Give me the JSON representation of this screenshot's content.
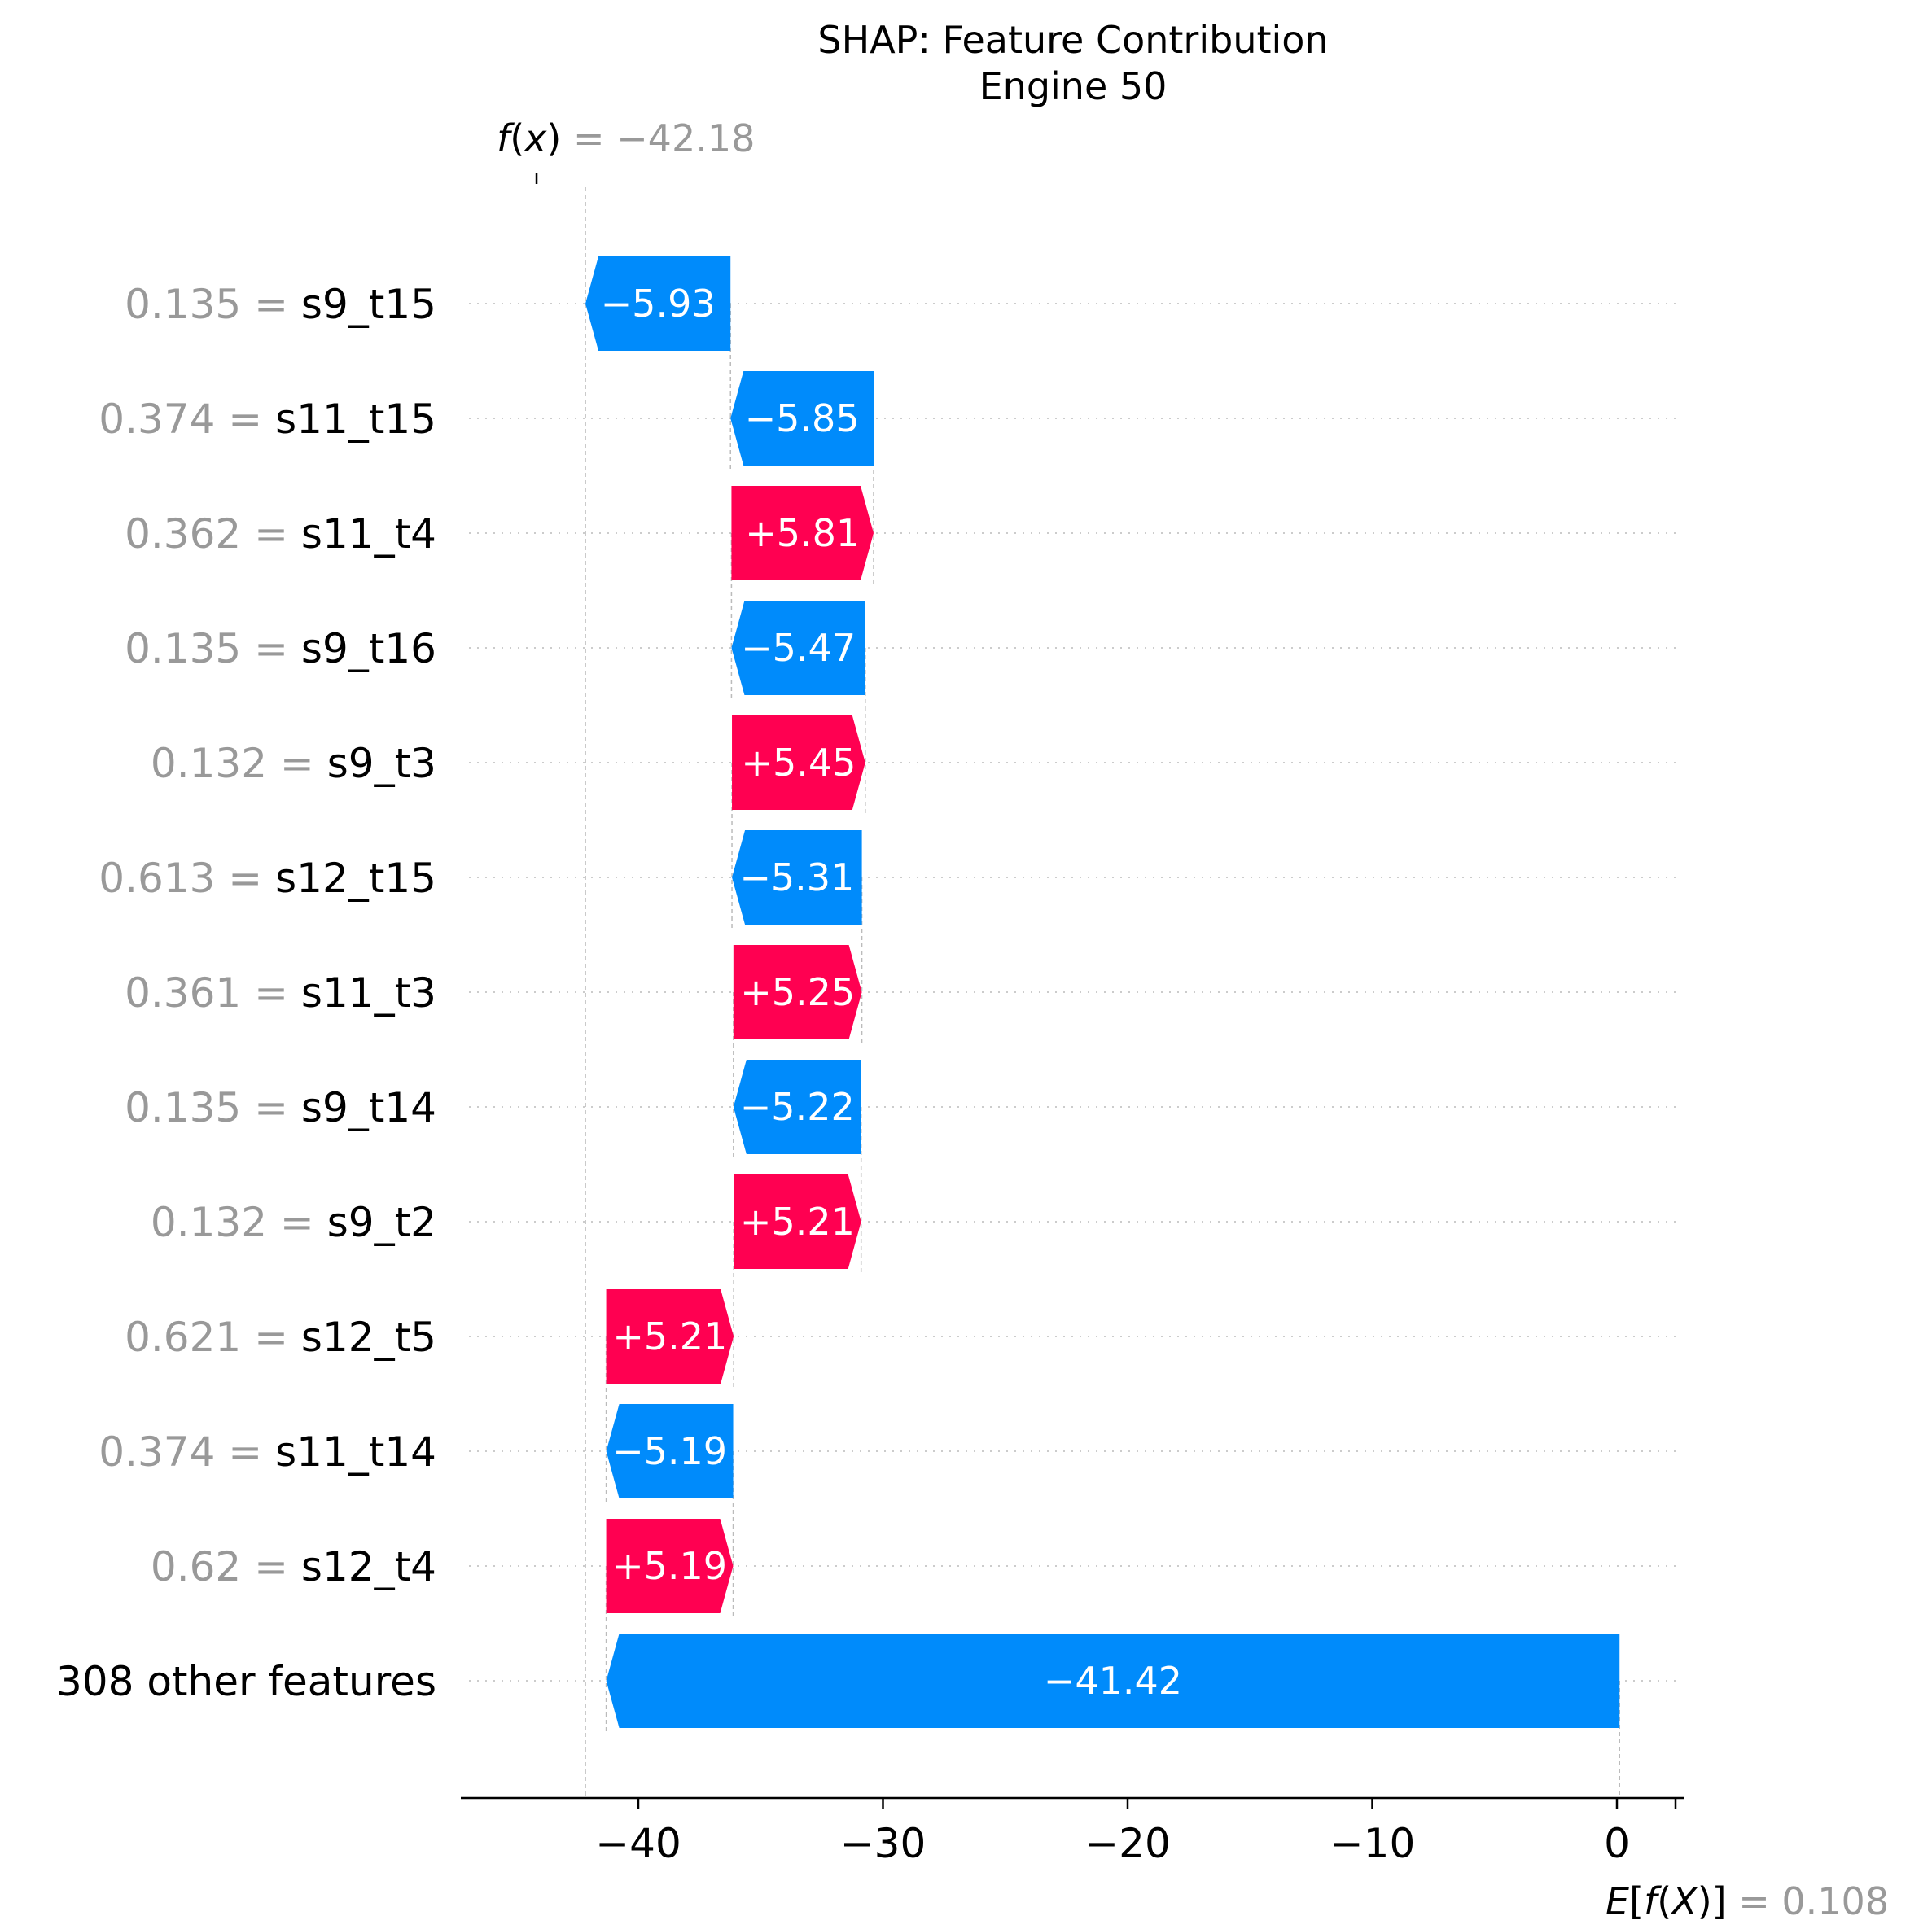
{
  "chart_data": {
    "type": "waterfall",
    "title": "SHAP: Feature Contribution",
    "subtitle": "Engine 50",
    "fx_value": "−42.18",
    "base_value": "0.108",
    "base_value_num": 0.108,
    "xlim": [
      -47,
      2.7
    ],
    "xticks": [
      -40,
      -30,
      -20,
      -10,
      0
    ],
    "tick_labels": [
      "−40",
      "−30",
      "−20",
      "−10",
      "0"
    ],
    "colors": {
      "positive": "#ff0051",
      "negative": "#008bfb"
    },
    "features": [
      {
        "value": "0.135",
        "name": "s9_t15",
        "shap": -5.93,
        "label": "−5.93"
      },
      {
        "value": "0.374",
        "name": "s11_t15",
        "shap": -5.85,
        "label": "−5.85"
      },
      {
        "value": "0.362",
        "name": "s11_t4",
        "shap": 5.81,
        "label": "+5.81"
      },
      {
        "value": "0.135",
        "name": "s9_t16",
        "shap": -5.47,
        "label": "−5.47"
      },
      {
        "value": "0.132",
        "name": "s9_t3",
        "shap": 5.45,
        "label": "+5.45"
      },
      {
        "value": "0.613",
        "name": "s12_t15",
        "shap": -5.31,
        "label": "−5.31"
      },
      {
        "value": "0.361",
        "name": "s11_t3",
        "shap": 5.25,
        "label": "+5.25"
      },
      {
        "value": "0.135",
        "name": "s9_t14",
        "shap": -5.22,
        "label": "−5.22"
      },
      {
        "value": "0.132",
        "name": "s9_t2",
        "shap": 5.21,
        "label": "+5.21"
      },
      {
        "value": "0.621",
        "name": "s12_t5",
        "shap": 5.21,
        "label": "+5.21"
      },
      {
        "value": "0.374",
        "name": "s11_t14",
        "shap": -5.19,
        "label": "−5.19"
      },
      {
        "value": "0.62",
        "name": "s12_t4",
        "shap": 5.19,
        "label": "+5.19"
      },
      {
        "value": "",
        "name": "308 other features",
        "shap": -41.42,
        "label": "−41.42"
      }
    ]
  }
}
